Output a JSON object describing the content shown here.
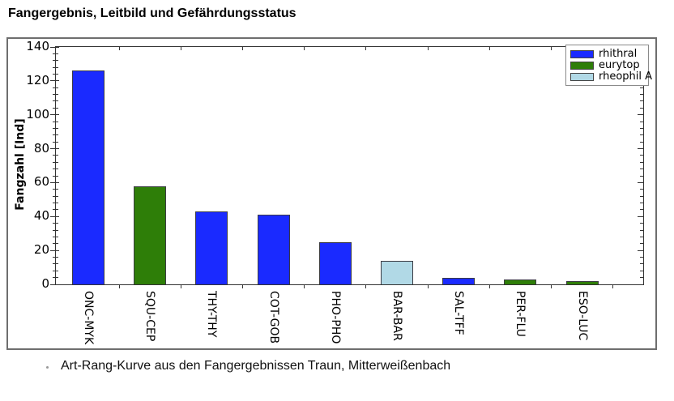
{
  "title": "Fangergebnis, Leitbild und Gefährdungsstatus",
  "caption": "Art-Rang-Kurve aus den Fangergebnissen Traun, Mitterweißenbach",
  "colors": {
    "rhithral": "#1a2aff",
    "eurytop": "#2e7e08",
    "rheophil_a": "#b1d9e6",
    "bar_edge": "#3c3c44",
    "axis": "#333333",
    "outer_frame": "#6e6e6e"
  },
  "chart_data": {
    "type": "bar",
    "title": "",
    "xlabel": "",
    "ylabel": "Fangzahl [Ind]",
    "ylim": [
      0,
      140
    ],
    "y_ticks": [
      0,
      20,
      40,
      60,
      80,
      100,
      120,
      140
    ],
    "y_minor_step": 4,
    "grid": false,
    "legend_position": "top-right-inside",
    "categories": [
      "ONC-MYK",
      "SQU-CEP",
      "THY-THY",
      "COT-GOB",
      "PHO-PHO",
      "BAR-BAR",
      "SAL-TFF",
      "PER-FLU",
      "ESO-LUC"
    ],
    "values": [
      126,
      58,
      43,
      41,
      25,
      14,
      4,
      3,
      2
    ],
    "bar_groups": [
      "rhithral",
      "eurytop",
      "rhithral",
      "rhithral",
      "rhithral",
      "rheophil A",
      "rhithral",
      "eurytop",
      "eurytop"
    ],
    "legend": [
      {
        "label": "rhithral",
        "color": "#1a2aff"
      },
      {
        "label": "eurytop",
        "color": "#2e7e08"
      },
      {
        "label": "rheophil A",
        "color": "#b1d9e6"
      }
    ]
  }
}
